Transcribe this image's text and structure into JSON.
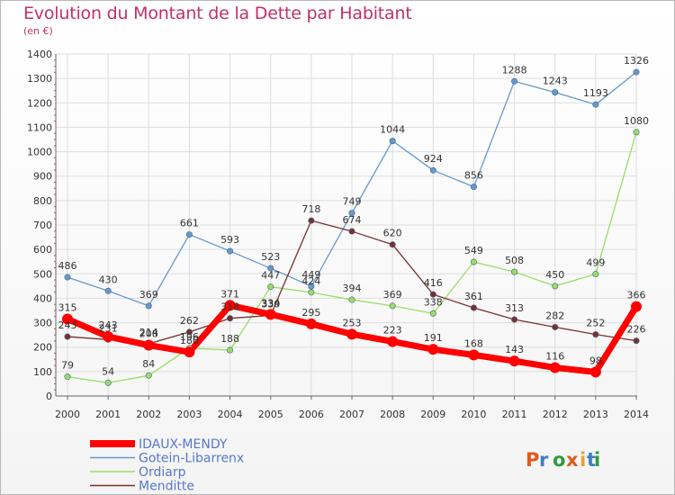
{
  "title": "Evolution du Montant de la Dette par Habitant",
  "subtitle": "(en €)",
  "logo": "Proxiti",
  "chart_data": {
    "type": "line",
    "x": [
      "2000",
      "2001",
      "2002",
      "2003",
      "2004",
      "2005",
      "2006",
      "2007",
      "2008",
      "2009",
      "2010",
      "2011",
      "2012",
      "2013",
      "2014"
    ],
    "ylim": [
      0,
      1400
    ],
    "yticks": [
      0,
      100,
      200,
      300,
      400,
      500,
      600,
      700,
      800,
      900,
      1000,
      1100,
      1200,
      1300,
      1400
    ],
    "grid": true,
    "legend_position": "bottom-left",
    "series": [
      {
        "name": "IDAUX-MENDY",
        "color": "#ff0000",
        "values": [
          315,
          243,
          208,
          180,
          371,
          334,
          295,
          253,
          223,
          191,
          168,
          143,
          116,
          98,
          366
        ]
      },
      {
        "name": "Gotein-Libarrenx",
        "color": "#6699cc",
        "values": [
          486,
          430,
          369,
          661,
          593,
          523,
          449,
          749,
          1044,
          924,
          856,
          1288,
          1243,
          1193,
          1326
        ]
      },
      {
        "name": "Ordiarp",
        "color": "#99dd66",
        "values": [
          79,
          54,
          84,
          196,
          188,
          447,
          424,
          394,
          369,
          338,
          549,
          508,
          450,
          499,
          1080
        ]
      },
      {
        "name": "Menditte",
        "color": "#7a3030",
        "values": [
          243,
          231,
          214,
          262,
          318,
          330,
          718,
          674,
          620,
          416,
          361,
          313,
          282,
          252,
          226
        ]
      }
    ]
  }
}
